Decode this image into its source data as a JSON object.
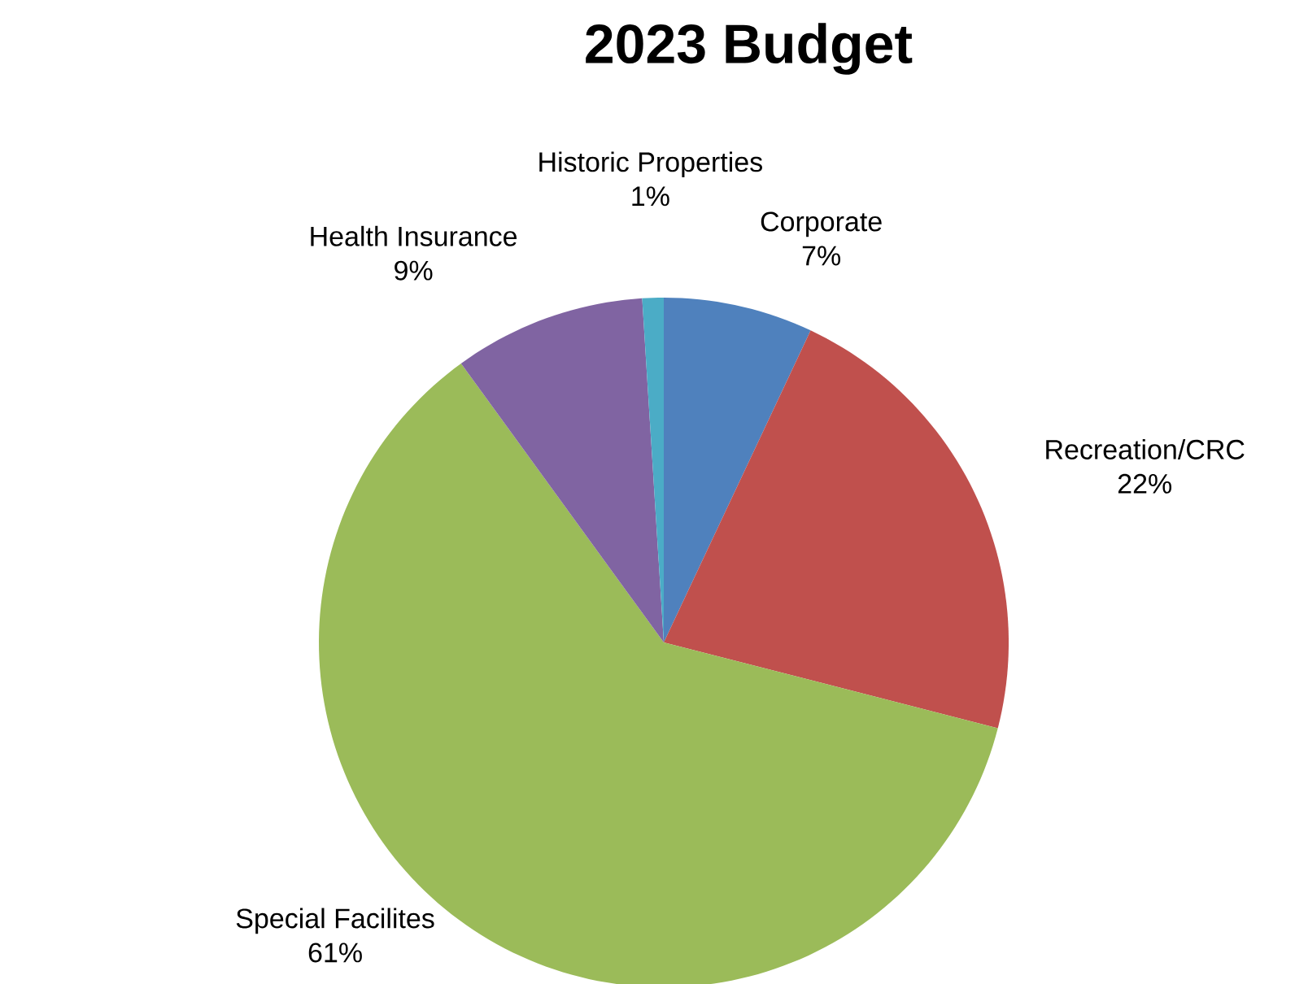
{
  "chart_data": {
    "type": "pie",
    "title": "2023 Budget",
    "categories": [
      "Corporate",
      "Recreation/CRC",
      "Special Facilites",
      "Health Insurance",
      "Historic Properties"
    ],
    "values": [
      7,
      22,
      61,
      9,
      1
    ],
    "value_labels": [
      "7%",
      "22%",
      "61%",
      "9%",
      "1%"
    ],
    "colors": [
      "#4f81bd",
      "#c0504d",
      "#9bbb59",
      "#8064a2",
      "#4bacc6"
    ]
  }
}
